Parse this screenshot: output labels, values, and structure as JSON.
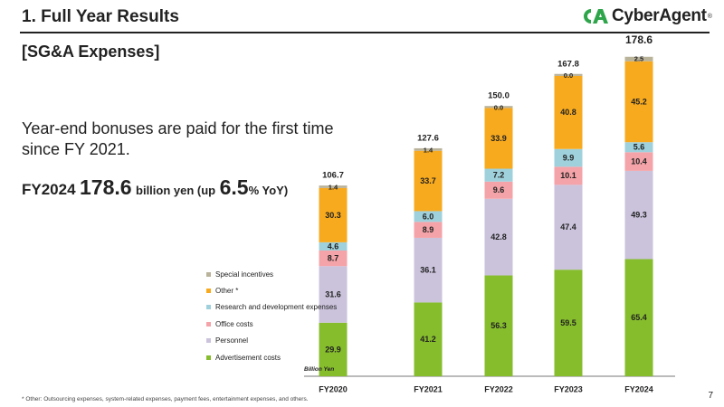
{
  "header": {
    "title": "1. Full Year Results",
    "logo_text": "CyberAgent",
    "logo_mark": "®"
  },
  "section_title": "[SG&A Expenses]",
  "commentary": {
    "note": "Year-end bonuses are paid for the first time since FY 2021.",
    "headline_prefix": "FY2024",
    "headline_value": "178.6",
    "headline_mid": "billion yen (up",
    "headline_pct": "6.5",
    "headline_suffix": "% YoY)"
  },
  "chart_data": {
    "type": "bar",
    "stacked": true,
    "unit_label": "Billion Yen",
    "categories": [
      "FY2020",
      "FY2021",
      "FY2022",
      "FY2023",
      "FY2024"
    ],
    "series": [
      {
        "name": "Advertisement costs",
        "color": "#86bd2c",
        "values": [
          29.9,
          41.2,
          56.3,
          59.5,
          65.4
        ],
        "labels": [
          "29.9",
          "41.2",
          "56.3",
          "59.5",
          "65.4"
        ]
      },
      {
        "name": "Personnel",
        "color": "#cbc3dc",
        "values": [
          31.6,
          36.1,
          42.8,
          47.4,
          49.3
        ],
        "labels": [
          "31.6",
          "36.1",
          "42.8",
          "47.4",
          "49.3"
        ]
      },
      {
        "name": "Office costs",
        "color": "#f4a3a8",
        "values": [
          8.7,
          8.9,
          9.6,
          10.1,
          10.4
        ],
        "labels": [
          "8.7",
          "8.9",
          "9.6",
          "10.1",
          "10.4"
        ]
      },
      {
        "name": "Research and development expenses",
        "color": "#9fd1dc",
        "values": [
          4.6,
          6.0,
          7.2,
          9.9,
          5.6
        ],
        "labels": [
          "4.6",
          "6.0",
          "7.2",
          "9.9",
          "5.6"
        ]
      },
      {
        "name": "Other",
        "marker": "*",
        "color": "#f8aa1e",
        "values": [
          30.3,
          33.7,
          33.9,
          40.8,
          45.2
        ],
        "labels": [
          "30.3",
          "33.7",
          "33.9",
          "40.8",
          "45.2"
        ]
      },
      {
        "name": "Special incentives",
        "color": "#b9b39a",
        "values": [
          1.4,
          1.4,
          0.0,
          0.0,
          2.5
        ],
        "labels": [
          "1.4",
          "1.4",
          "0.0",
          "0.0",
          "2.5"
        ]
      }
    ],
    "totals": [
      "106.7",
      "127.6",
      "150.0",
      "167.8",
      "178.6"
    ],
    "ylim": [
      0,
      180
    ],
    "grid": false,
    "legend_position": "left"
  },
  "footnote": "* Other: Outsourcing expenses, system-related expenses, payment fees, entertainment expenses, and others.",
  "page_number": "7"
}
